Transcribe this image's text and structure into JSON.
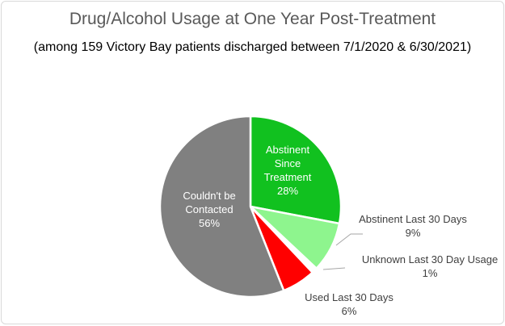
{
  "chart_data": {
    "type": "pie",
    "title": "Drug/Alcohol Usage at One Year Post-Treatment",
    "subtitle": "(among 159 Victory Bay patients discharged between 7/1/2020 & 6/30/2021)",
    "slices": [
      {
        "label": "Abstinent Since Treatment",
        "label_lines": [
          "Abstinent",
          "Since",
          "Treatment"
        ],
        "pct_label": "28%",
        "value": 28,
        "color": "#11c11f",
        "text_color": "#ffffff"
      },
      {
        "label": "Abstinent Last 30 Days",
        "label_lines": [
          "Abstinent Last 30 Days"
        ],
        "pct_label": "9%",
        "value": 9,
        "color": "#8ef58e",
        "text_color": "#404040"
      },
      {
        "label": "Unknown Last 30 Day Usage",
        "label_lines": [
          "Unknown Last 30 Day Usage"
        ],
        "pct_label": "1%",
        "value": 1,
        "color": "#fffffe",
        "text_color": "#404040"
      },
      {
        "label": "Used Last 30 Days",
        "label_lines": [
          "Used Last 30 Days"
        ],
        "pct_label": "6%",
        "value": 6,
        "color": "#ff0000",
        "text_color": "#404040"
      },
      {
        "label": "Couldn't be Contacted",
        "label_lines": [
          "Couldn't be",
          "Contacted"
        ],
        "pct_label": "56%",
        "value": 56,
        "color": "#808080",
        "text_color": "#ffffff"
      }
    ]
  }
}
